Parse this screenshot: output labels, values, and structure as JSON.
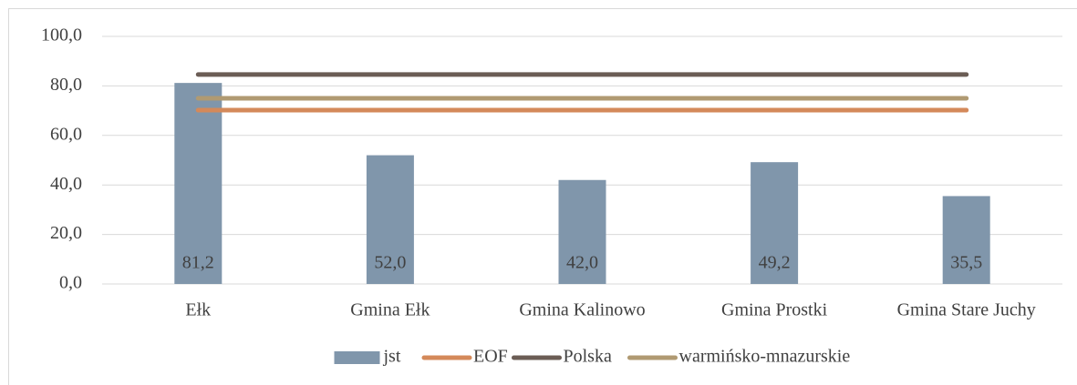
{
  "chart_data": {
    "type": "bar",
    "categories": [
      "Ełk",
      "Gmina Ełk",
      "Gmina Kalinowo",
      "Gmina Prostki",
      "Gmina Stare Juchy"
    ],
    "series": [
      {
        "name": "jst",
        "type": "bar",
        "color": "#8096ab",
        "values": [
          81.2,
          52.0,
          42.0,
          49.2,
          35.5
        ],
        "value_labels": [
          "81,2",
          "52,0",
          "42,0",
          "49,2",
          "35,5"
        ]
      },
      {
        "name": "EOF",
        "type": "line",
        "color": "#d4895a",
        "values": [
          70.2,
          70.2,
          70.2,
          70.2,
          70.2
        ]
      },
      {
        "name": "Polska",
        "type": "line",
        "color": "#6b5d55",
        "values": [
          84.6,
          84.6,
          84.6,
          84.6,
          84.6
        ]
      },
      {
        "name": "warmińsko-mnazurskie",
        "type": "line",
        "color": "#b09a72",
        "values": [
          75.0,
          75.0,
          75.0,
          75.0,
          75.0
        ]
      }
    ],
    "ylim": [
      0,
      100
    ],
    "yticks": [
      {
        "value": 0,
        "label": "0,0"
      },
      {
        "value": 20,
        "label": "20,0"
      },
      {
        "value": 40,
        "label": "40,0"
      },
      {
        "value": 60,
        "label": "60,0"
      },
      {
        "value": 80,
        "label": "80,0"
      },
      {
        "value": 100,
        "label": "100,0"
      }
    ],
    "grid": true,
    "legend": "bottom"
  }
}
